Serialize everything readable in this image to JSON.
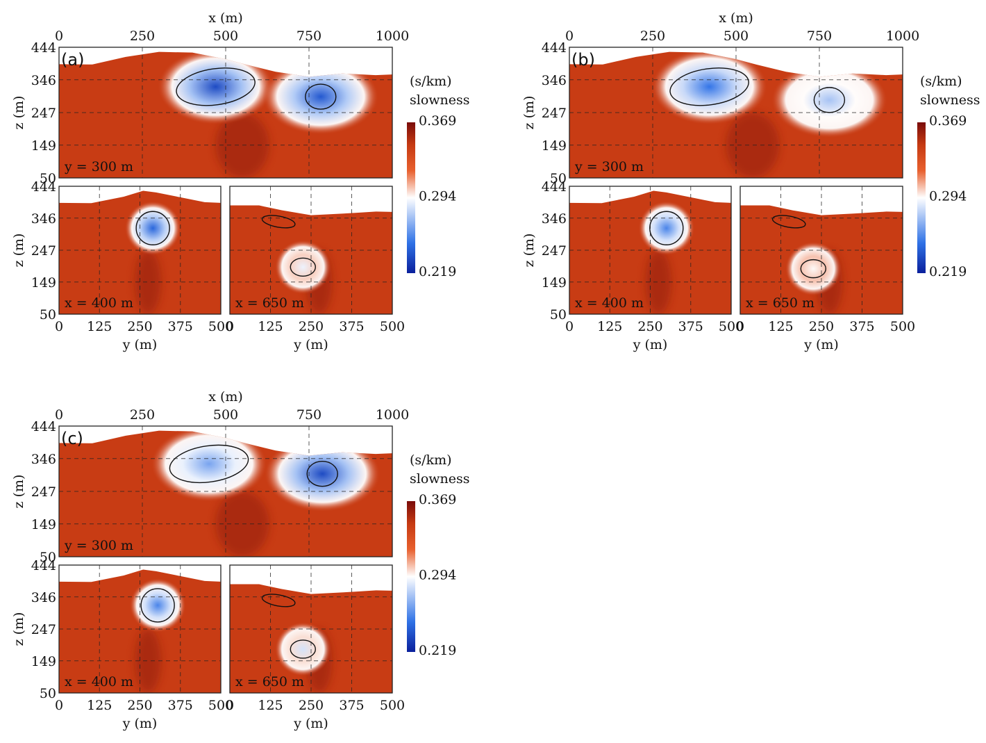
{
  "chart_data": {
    "type": "heatmap",
    "colorbar": {
      "unit": "(s/km)",
      "label": "slowness",
      "min": 0.219,
      "mid": 0.294,
      "max": 0.369,
      "tick_labels": [
        "0.369",
        "0.294",
        "0.219"
      ],
      "colors": [
        "#0a1f9c",
        "#2f72e6",
        "#ffffff",
        "#e8602e",
        "#c63a12",
        "#7a0c0a"
      ]
    },
    "axes": {
      "x_ticks": [
        "0",
        "250",
        "500",
        "750",
        "1000"
      ],
      "y_ticks": [
        "0",
        "125",
        "250",
        "375",
        "500"
      ],
      "z_ticks": [
        "444",
        "346",
        "247",
        "149",
        "50"
      ],
      "xlabel": "x (m)",
      "ylabel": "y (m)",
      "zlabel": "z (m)"
    },
    "panels": [
      {
        "id": "a",
        "label": "(a)",
        "sections": [
          {
            "axis": "y",
            "text": "y = 300 m",
            "bodies": [
              {
                "center": [
                  470,
                  325
                ],
                "minimum": 0.235
              },
              {
                "center": [
                  785,
                  295
                ],
                "minimum": 0.24
              }
            ]
          },
          {
            "axis": "x",
            "text": "x = 400 m",
            "bodies": [
              {
                "center": [
                  290,
                  315
                ],
                "minimum": 0.245
              }
            ]
          },
          {
            "axis": "x",
            "text": "x = 650 m",
            "bodies": [
              {
                "center": [
                  225,
                  195
                ],
                "minimum": 0.29
              }
            ]
          }
        ]
      },
      {
        "id": "b",
        "label": "(b)",
        "sections": [
          {
            "axis": "y",
            "text": "y = 300 m",
            "bodies": [
              {
                "center": [
                  420,
                  325
                ],
                "minimum": 0.25
              },
              {
                "center": [
                  780,
                  285
                ],
                "minimum": 0.275
              }
            ]
          },
          {
            "axis": "x",
            "text": "x = 400 m",
            "bodies": [
              {
                "center": [
                  300,
                  315
                ],
                "minimum": 0.255
              }
            ]
          },
          {
            "axis": "x",
            "text": "x = 650 m",
            "bodies": [
              {
                "center": [
                  225,
                  190
                ],
                "minimum": 0.295
              }
            ]
          }
        ]
      },
      {
        "id": "c",
        "label": "(c)",
        "sections": [
          {
            "axis": "y",
            "text": "y = 300 m",
            "bodies": [
              {
                "center": [
                  450,
                  330
                ],
                "minimum": 0.265
              },
              {
                "center": [
                  790,
                  300
                ],
                "minimum": 0.235
              }
            ]
          },
          {
            "axis": "x",
            "text": "x = 400 m",
            "bodies": [
              {
                "center": [
                  305,
                  320
                ],
                "minimum": 0.255
              }
            ]
          },
          {
            "axis": "x",
            "text": "x = 650 m",
            "bodies": [
              {
                "center": [
                  225,
                  185
                ],
                "minimum": 0.285
              }
            ]
          }
        ]
      }
    ]
  }
}
